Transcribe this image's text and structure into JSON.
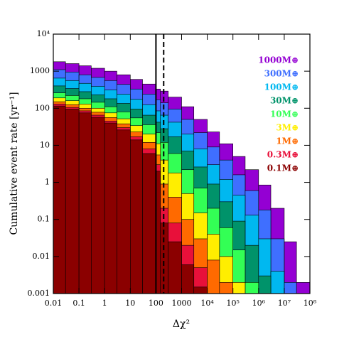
{
  "chart_data": {
    "type": "step-area",
    "x_label": "Δχ²",
    "y_label": "Cumulative event rate [yr⁻¹]",
    "xscale": "log",
    "yscale": "log",
    "xlim": [
      0.01,
      100000000
    ],
    "ylim": [
      0.001,
      10000
    ],
    "xticks": [
      0.01,
      0.1,
      1,
      10,
      100,
      1000,
      {
        "value": 10000,
        "label": "10⁴"
      },
      {
        "value": 100000,
        "label": "10⁵"
      },
      {
        "value": 1000000,
        "label": "10⁶"
      },
      {
        "value": 10000000,
        "label": "10⁷"
      },
      {
        "value": 100000000,
        "label": "10⁸"
      }
    ],
    "yticks": [
      0.001,
      0.01,
      0.1,
      1,
      10,
      100,
      1000,
      {
        "value": 10000,
        "label": "10⁴"
      }
    ],
    "vlines": [
      {
        "x": 100,
        "style": "solid"
      },
      {
        "x": 200,
        "style": "dashed"
      }
    ],
    "x": [
      0.01,
      0.03,
      0.1,
      0.3,
      1,
      3,
      10,
      30,
      100,
      150,
      300,
      1000,
      3000,
      10000,
      30000,
      100000,
      300000,
      1000000,
      3000000,
      10000000,
      30000000,
      100000000
    ],
    "series": [
      {
        "name": "1000M⊕",
        "color": "#9400d3",
        "values": [
          1800,
          1600,
          1400,
          1200,
          1000,
          800,
          600,
          450,
          330,
          290,
          200,
          110,
          50,
          23,
          11,
          5,
          2.2,
          0.85,
          0.2,
          0.025,
          0.002,
          null
        ]
      },
      {
        "name": "300M⊕",
        "color": "#3f6fff",
        "values": [
          1100,
          950,
          800,
          680,
          560,
          440,
          330,
          240,
          170,
          140,
          95,
          50,
          22,
          9,
          4,
          1.6,
          0.6,
          0.18,
          0.03,
          0.002,
          null,
          null
        ]
      },
      {
        "name": "100M⊕",
        "color": "#00b8f0",
        "values": [
          650,
          560,
          470,
          390,
          310,
          240,
          175,
          125,
          85,
          65,
          42,
          20,
          8,
          3,
          1.2,
          0.45,
          0.13,
          0.03,
          0.004,
          null,
          null,
          null
        ]
      },
      {
        "name": "30M⊕",
        "color": "#00936a",
        "values": [
          400,
          340,
          280,
          230,
          180,
          135,
          95,
          65,
          42,
          28,
          17,
          7,
          2.6,
          0.9,
          0.3,
          0.09,
          0.02,
          0.003,
          null,
          null,
          null,
          null
        ]
      },
      {
        "name": "10M⊕",
        "color": "#33ff55",
        "values": [
          260,
          220,
          180,
          145,
          110,
          80,
          55,
          36,
          22,
          12,
          6,
          2.2,
          0.7,
          0.2,
          0.06,
          0.015,
          0.002,
          null,
          null,
          null,
          null,
          null
        ]
      },
      {
        "name": "3M⊕",
        "color": "#ffee00",
        "values": [
          190,
          160,
          130,
          100,
          75,
          52,
          34,
          20,
          11,
          4,
          1.8,
          0.5,
          0.15,
          0.04,
          0.01,
          0.002,
          null,
          null,
          null,
          null,
          null,
          null
        ]
      },
      {
        "name": "1M⊕",
        "color": "#ff6a00",
        "values": [
          150,
          125,
          100,
          78,
          56,
          38,
          23,
          12,
          5.5,
          0.9,
          0.4,
          0.1,
          0.03,
          0.008,
          0.002,
          null,
          null,
          null,
          null,
          null,
          null,
          null
        ]
      },
      {
        "name": "0.3M⊕",
        "color": "#e8103a",
        "values": [
          130,
          105,
          85,
          65,
          45,
          30,
          17,
          8,
          3,
          0.2,
          0.08,
          0.02,
          0.005,
          0.001,
          null,
          null,
          null,
          null,
          null,
          null,
          null,
          null
        ]
      },
      {
        "name": "0.1M⊕",
        "color": "#8b0000",
        "values": [
          115,
          95,
          75,
          57,
          40,
          26,
          14,
          6,
          2,
          0.08,
          0.025,
          0.006,
          0.0015,
          null,
          null,
          null,
          null,
          null,
          null,
          null,
          null,
          null
        ]
      }
    ]
  }
}
